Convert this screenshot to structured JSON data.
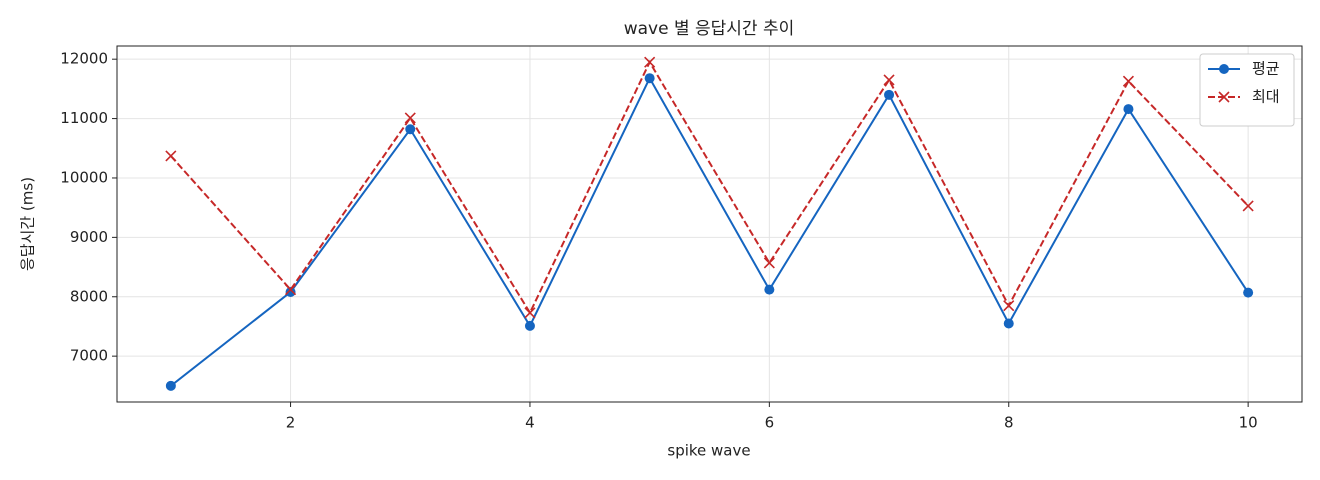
{
  "chart_data": {
    "type": "line",
    "title": "wave 별 응답시간 추이",
    "xlabel": "spike wave",
    "ylabel": "응답시간 (ms)",
    "x": [
      1,
      2,
      3,
      4,
      5,
      6,
      7,
      8,
      9,
      10
    ],
    "series": [
      {
        "name": "평균",
        "color": "#1565c0",
        "linestyle": "solid",
        "marker": "o",
        "values": [
          6500,
          8080,
          10820,
          7510,
          11680,
          8120,
          11400,
          7550,
          11160,
          8070
        ]
      },
      {
        "name": "최대",
        "color": "#c62828",
        "linestyle": "dashed",
        "marker": "x",
        "values": [
          10370,
          8120,
          11010,
          7730,
          11950,
          8570,
          11650,
          7850,
          11630,
          9530
        ]
      }
    ],
    "xlim": [
      0.55,
      10.45
    ],
    "xticks": [
      2,
      4,
      6,
      8,
      10
    ],
    "ylim": [
      6228,
      12222
    ],
    "yticks": [
      7000,
      8000,
      9000,
      10000,
      11000,
      12000
    ],
    "grid": true,
    "legend": "upper right"
  }
}
